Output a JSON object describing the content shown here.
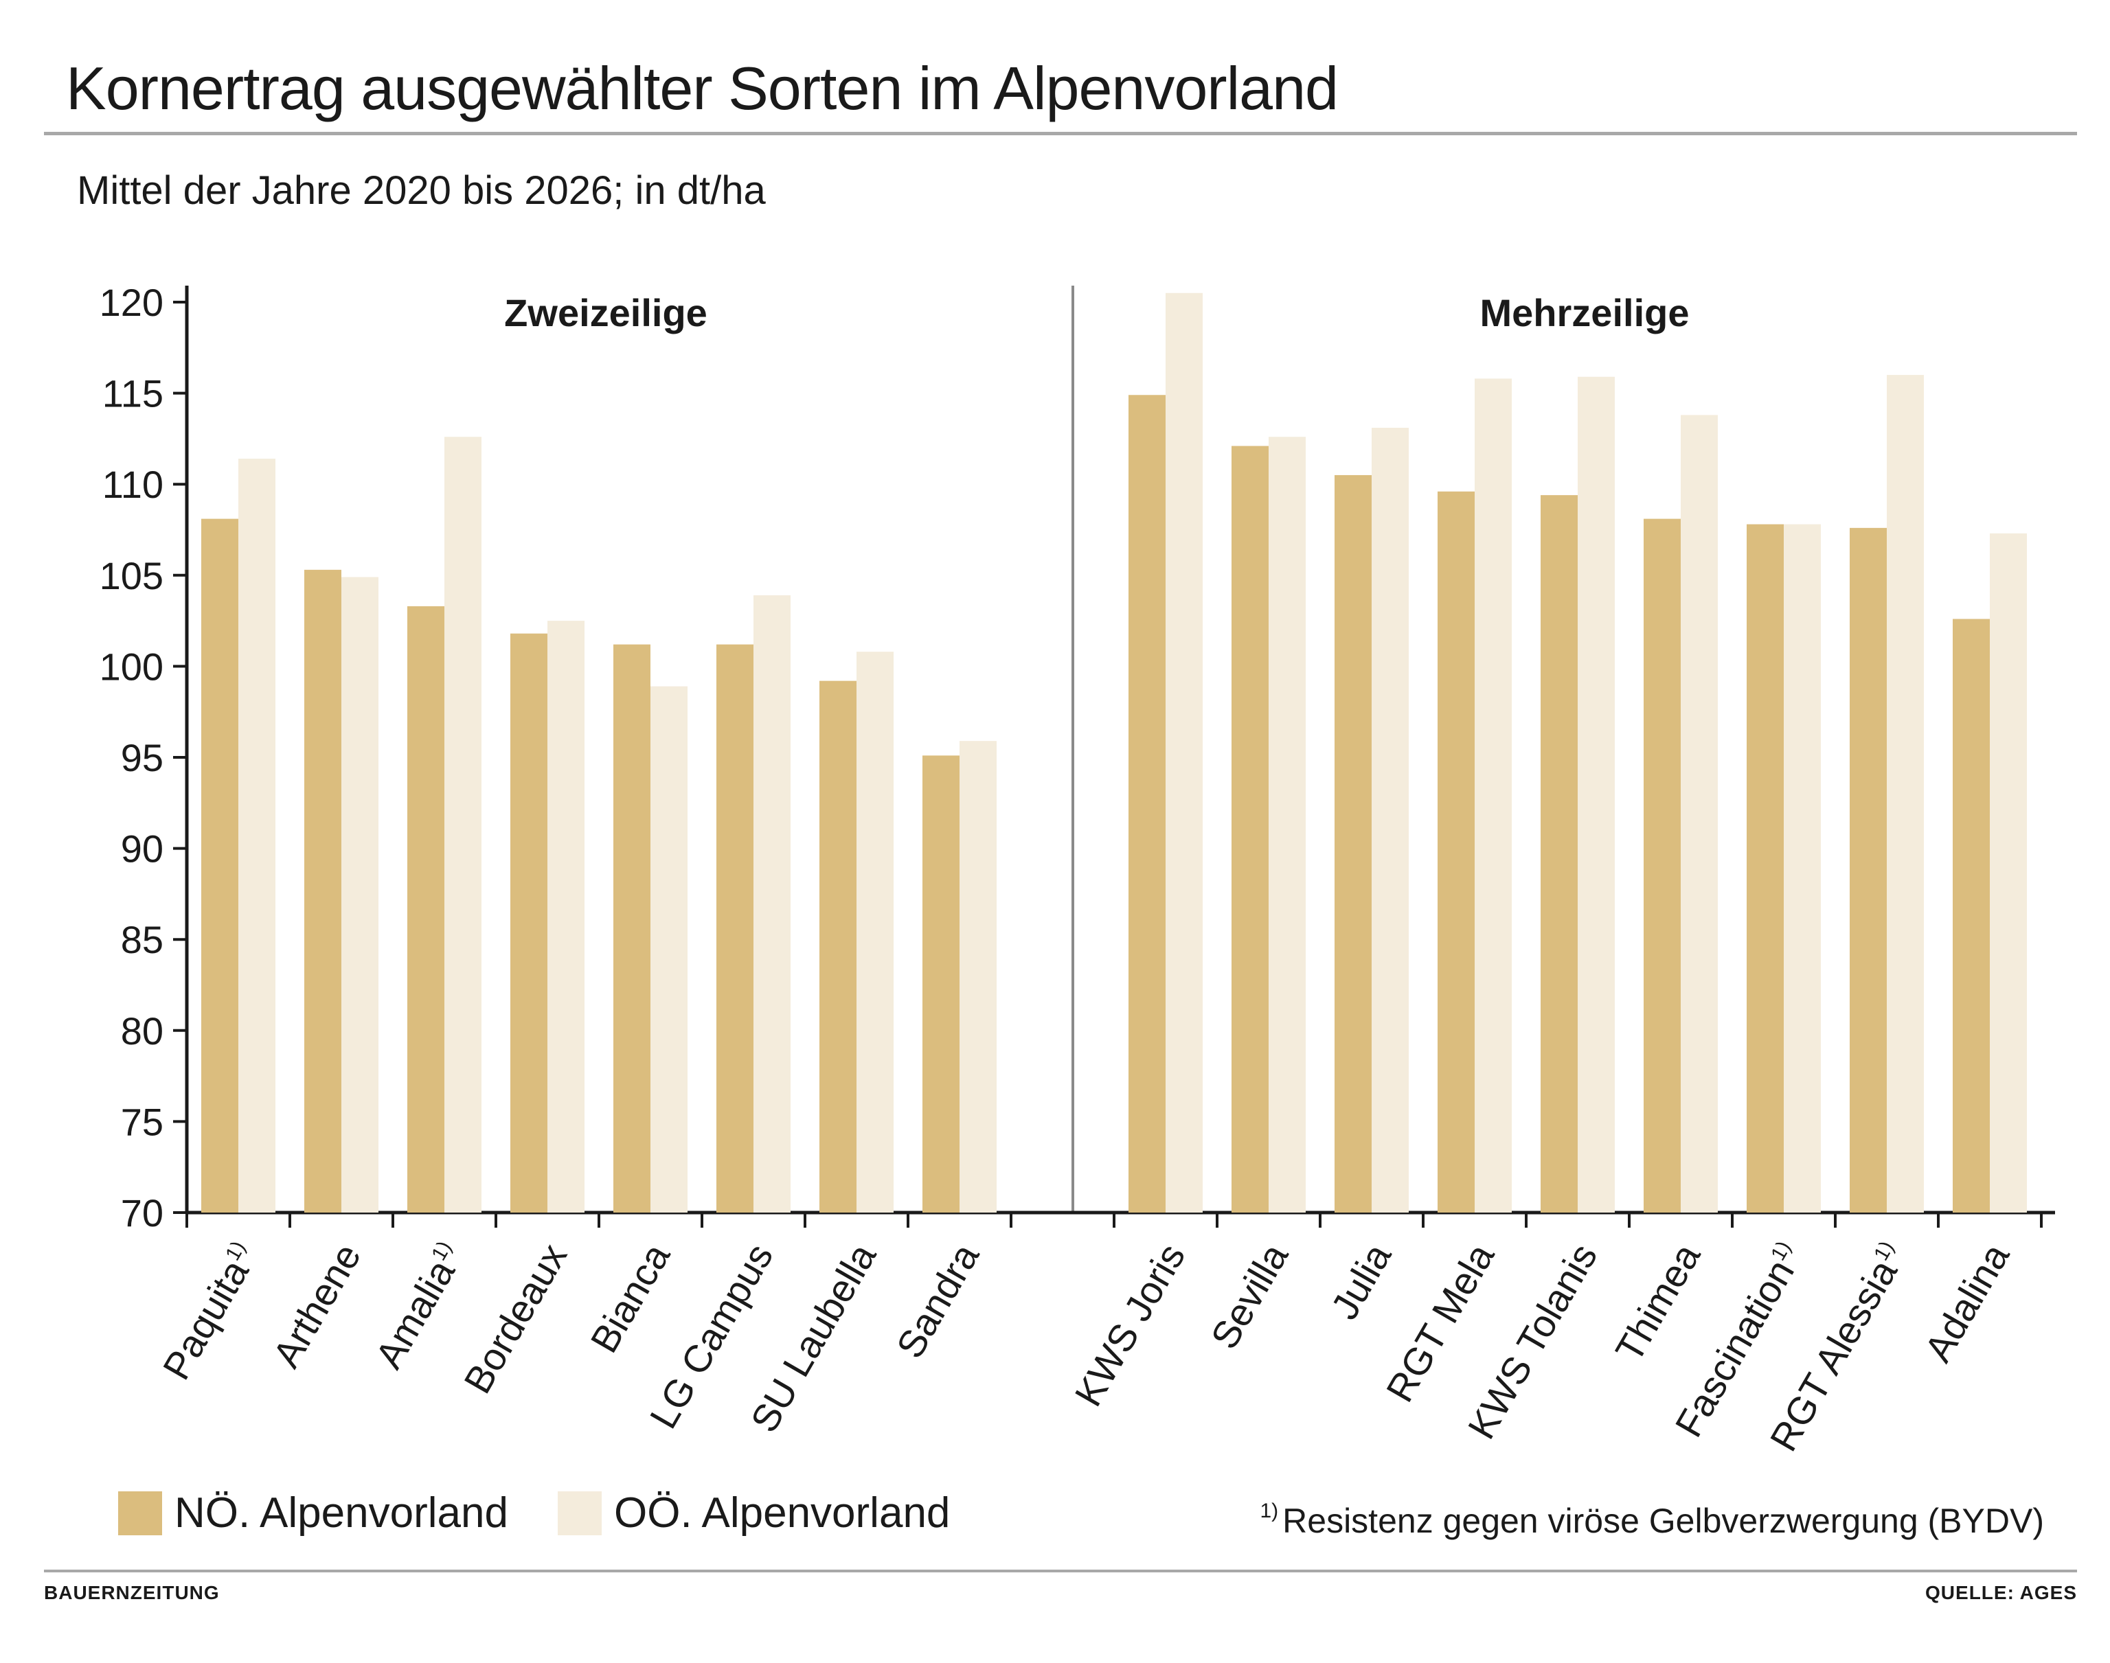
{
  "header": {
    "title": "Kornertrag ausgewählter Sorten im Alpenvorland",
    "subtitle": "Mittel der Jahre 2020 bis 2026; in dt/ha"
  },
  "legend": {
    "items": [
      {
        "label": "NÖ. Alpenvorland",
        "color": "#dbbd7e"
      },
      {
        "label": "OÖ. Alpenvorland",
        "color": "#f4ecdc"
      }
    ]
  },
  "footnote": {
    "marker": "1)",
    "text": "Resistenz gegen viröse Gelbverzwergung (BYDV)"
  },
  "credits": {
    "left": "BAUERNZEITUNG",
    "right": "QUELLE: AGES"
  },
  "chart_data": {
    "type": "bar",
    "ylim": [
      70,
      120
    ],
    "yticks": [
      70,
      75,
      80,
      85,
      90,
      95,
      100,
      105,
      110,
      115,
      120
    ],
    "grid": false,
    "legend_position": "bottom-left",
    "series_names": [
      "NÖ. Alpenvorland",
      "OÖ. Alpenvorland"
    ],
    "colors": [
      "#dbbd7e",
      "#f4ecdc"
    ],
    "groups": [
      {
        "title": "Zweizeilige",
        "categories": [
          "Paquita",
          "Arthene",
          "Amalia",
          "Bordeaux",
          "Bianca",
          "LG Campus",
          "SU Laubella",
          "Sandra"
        ],
        "footnote_flags": [
          true,
          false,
          true,
          false,
          false,
          false,
          false,
          false
        ],
        "series": [
          {
            "name": "NÖ. Alpenvorland",
            "values": [
              108.1,
              105.3,
              103.3,
              101.8,
              101.2,
              101.2,
              99.2,
              95.1
            ]
          },
          {
            "name": "OÖ. Alpenvorland",
            "values": [
              111.4,
              104.9,
              112.6,
              102.5,
              98.9,
              103.9,
              100.8,
              95.9
            ]
          }
        ]
      },
      {
        "title": "Mehrzeilige",
        "categories": [
          "KWS Joris",
          "Sevilla",
          "Julia",
          "RGT Mela",
          "KWS Tolanis",
          "Thimea",
          "Fascination",
          "RGT Alessia",
          "Adalina"
        ],
        "footnote_flags": [
          false,
          false,
          false,
          false,
          false,
          false,
          true,
          true,
          false
        ],
        "series": [
          {
            "name": "NÖ. Alpenvorland",
            "values": [
              114.9,
              112.1,
              110.5,
              109.6,
              109.4,
              108.1,
              107.8,
              107.6,
              102.6
            ]
          },
          {
            "name": "OÖ. Alpenvorland",
            "values": [
              120.5,
              112.6,
              113.1,
              115.8,
              115.9,
              113.8,
              107.8,
              116.0,
              107.3
            ]
          }
        ]
      }
    ]
  }
}
